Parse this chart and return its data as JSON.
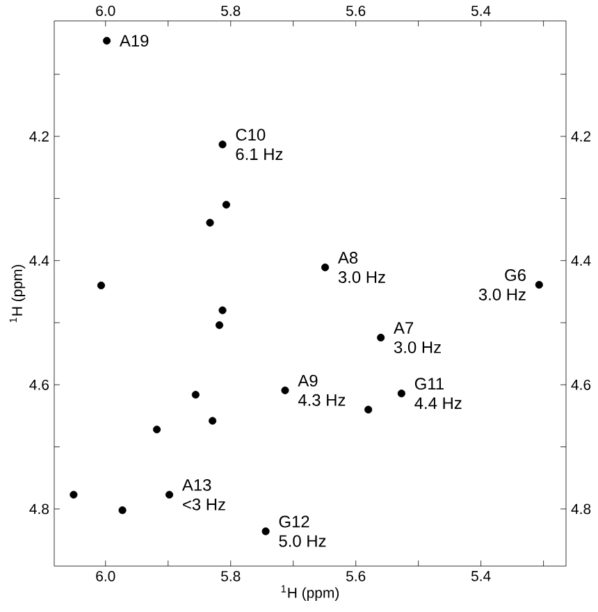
{
  "chart_data": {
    "type": "scatter",
    "xlabel": "$^{1}$H (ppm)",
    "ylabel": "$^{1}$H (ppm)",
    "marker": "circle",
    "color": "#000000",
    "x": [
      5.998,
      5.813,
      5.807,
      5.833,
      5.649,
      5.307,
      6.007,
      5.813,
      5.818,
      5.56,
      5.713,
      5.527,
      5.856,
      5.829,
      5.918,
      5.58,
      5.898,
      6.051,
      5.973,
      5.744
    ],
    "values": [
      4.046,
      4.213,
      4.31,
      4.339,
      4.411,
      4.439,
      4.44,
      4.48,
      4.504,
      4.524,
      4.609,
      4.614,
      4.616,
      4.658,
      4.672,
      4.64,
      4.777,
      4.777,
      4.802,
      4.836
    ],
    "xlim": [
      6.082,
      5.264
    ],
    "ylim": [
      4.892,
      4.014
    ],
    "xticks": [
      {
        "value": 6.0,
        "label": "6.0"
      },
      {
        "value": 5.9,
        "label": null
      },
      5.8,
      {
        "value": 5.7,
        "label": null
      },
      5.6,
      {
        "value": 5.5,
        "label": null
      },
      5.4,
      {
        "value": 5.3,
        "label": null
      }
    ],
    "yticks": [
      {
        "value": 4.1,
        "label": null
      },
      4.2,
      {
        "value": 4.3,
        "label": null
      },
      4.4,
      {
        "value": 4.5,
        "label": null
      },
      4.6,
      {
        "value": 4.7,
        "label": null
      },
      4.8
    ],
    "x2lim": [
      6.082,
      5.264
    ],
    "x2ticks": [
      {
        "value": 6.0,
        "label": "6.0"
      },
      {
        "value": 5.9,
        "label": null
      },
      5.8,
      {
        "value": 5.7,
        "label": null
      },
      5.6,
      {
        "value": 5.5,
        "label": null
      },
      5.4,
      {
        "value": 5.3,
        "label": null
      }
    ],
    "y2lim": [
      4.892,
      4.014
    ],
    "y2ticks": [
      {
        "value": 4.1,
        "label": null
      },
      4.2,
      {
        "value": 4.3,
        "label": null
      },
      4.4,
      {
        "value": 4.5,
        "label": null
      },
      4.6,
      {
        "value": 4.7,
        "label": null
      },
      4.8
    ],
    "annotations": [
      {
        "text": "A19",
        "x": 5.998,
        "y": 4.046
      },
      {
        "text": "C10",
        "x": 5.813,
        "y": 4.213
      },
      {
        "text": "6.1 Hz",
        "x": 5.813,
        "y": 4.213
      },
      {
        "text": "A8",
        "x": 5.649,
        "y": 4.411
      },
      {
        "text": "3.0 Hz",
        "x": 5.649,
        "y": 4.411
      },
      {
        "text": "G6",
        "x": 5.307,
        "y": 4.439
      },
      {
        "text": "3.0 Hz",
        "x": 5.307,
        "y": 4.439
      },
      {
        "text": "A7",
        "x": 5.56,
        "y": 4.524
      },
      {
        "text": "3.0 Hz",
        "x": 5.56,
        "y": 4.524
      },
      {
        "text": "A9",
        "x": 5.713,
        "y": 4.609
      },
      {
        "text": "4.3 Hz",
        "x": 5.713,
        "y": 4.609
      },
      {
        "text": "G11",
        "x": 5.527,
        "y": 4.614
      },
      {
        "text": "4.4 Hz",
        "x": 5.527,
        "y": 4.614
      },
      {
        "text": "A13",
        "x": 5.898,
        "y": 4.777
      },
      {
        "text": "<3 Hz",
        "x": 5.898,
        "y": 4.777
      },
      {
        "text": "G12",
        "x": 5.744,
        "y": 4.836
      },
      {
        "text": "5.0 Hz",
        "x": 5.744,
        "y": 4.836
      }
    ]
  }
}
